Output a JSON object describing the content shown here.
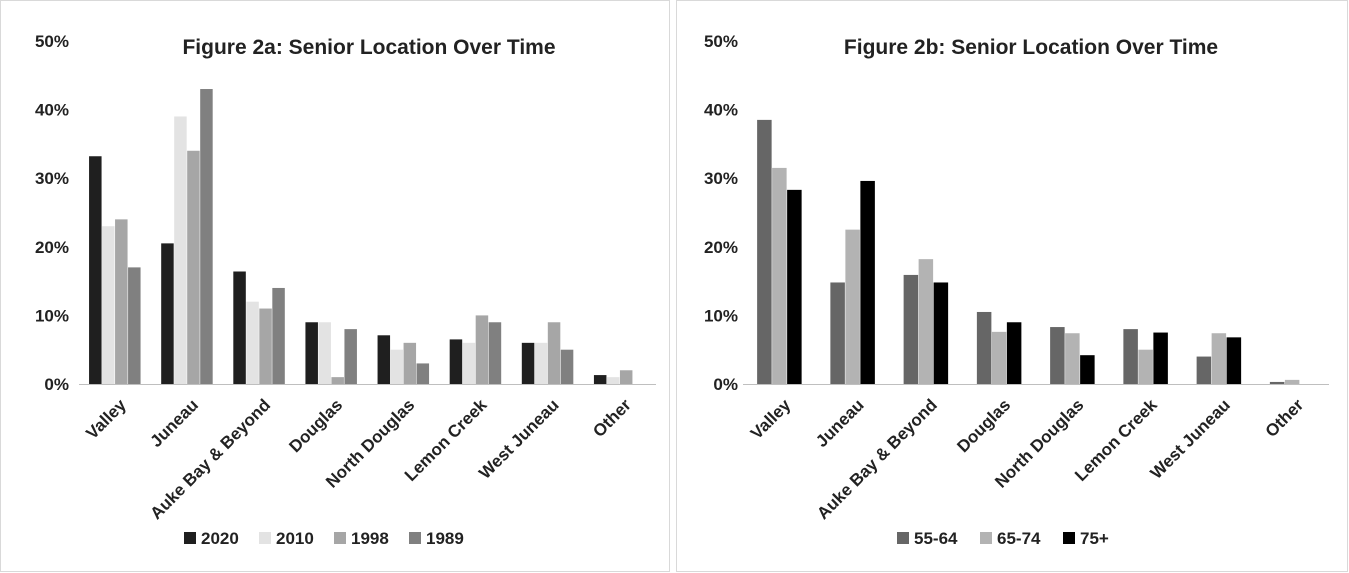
{
  "chart_data": [
    {
      "type": "bar",
      "title": "Figure 2a: Senior Location Over Time",
      "xlabel": "",
      "ylabel": "",
      "ylim": [
        0,
        50
      ],
      "yticks": [
        "0%",
        "10%",
        "20%",
        "30%",
        "40%",
        "50%"
      ],
      "grid": false,
      "legend_position": "bottom",
      "categories": [
        "Valley",
        "Juneau",
        "Auke Bay & Beyond",
        "Douglas",
        "North Douglas",
        "Lemon Creek",
        "West Juneau",
        "Other"
      ],
      "series": [
        {
          "name": "2020",
          "color": "#1f1f1f",
          "values": [
            33.2,
            20.5,
            16.4,
            9.0,
            7.1,
            6.5,
            6.0,
            1.3
          ]
        },
        {
          "name": "2010",
          "color": "#e3e3e3",
          "values": [
            23,
            39,
            12,
            9,
            5,
            6,
            6,
            1
          ]
        },
        {
          "name": "1998",
          "color": "#a6a6a6",
          "values": [
            24,
            34,
            11,
            1,
            6,
            10,
            9,
            2
          ]
        },
        {
          "name": "1989",
          "color": "#808080",
          "values": [
            17,
            43,
            14,
            8,
            3,
            9,
            5,
            0
          ]
        }
      ]
    },
    {
      "type": "bar",
      "title": "Figure 2b: Senior Location Over Time",
      "xlabel": "",
      "ylabel": "",
      "ylim": [
        0,
        50
      ],
      "yticks": [
        "0%",
        "10%",
        "20%",
        "30%",
        "40%",
        "50%"
      ],
      "grid": false,
      "legend_position": "bottom",
      "categories": [
        "Valley",
        "Juneau",
        "Auke Bay & Beyond",
        "Douglas",
        "North Douglas",
        "Lemon Creek",
        "West Juneau",
        "Other"
      ],
      "series": [
        {
          "name": "55-64",
          "color": "#666666",
          "values": [
            38.5,
            14.8,
            15.9,
            10.5,
            8.3,
            8.0,
            4.0,
            0.3
          ]
        },
        {
          "name": "65-74",
          "color": "#b3b3b3",
          "values": [
            31.5,
            22.5,
            18.2,
            7.6,
            7.4,
            5.0,
            7.4,
            0.6
          ]
        },
        {
          "name": "75+",
          "color": "#000000",
          "values": [
            28.3,
            29.6,
            14.8,
            9.0,
            4.2,
            7.5,
            6.8,
            0
          ]
        }
      ]
    }
  ]
}
